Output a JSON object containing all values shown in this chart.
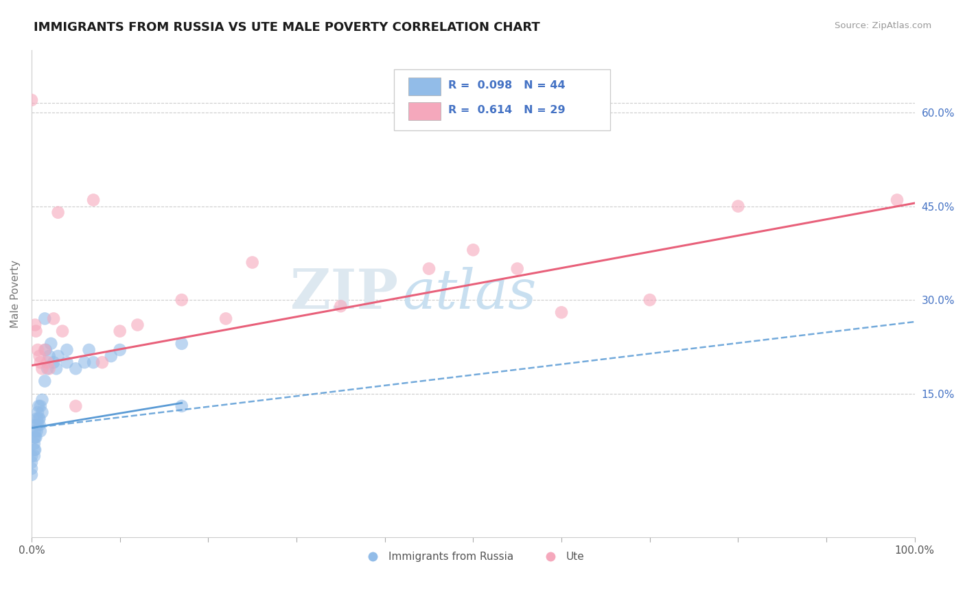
{
  "title": "IMMIGRANTS FROM RUSSIA VS UTE MALE POVERTY CORRELATION CHART",
  "source": "Source: ZipAtlas.com",
  "ylabel": "Male Poverty",
  "legend_label_blue": "Immigrants from Russia",
  "legend_label_pink": "Ute",
  "watermark_zip": "ZIP",
  "watermark_atlas": "atlas",
  "blue_color": "#92bce8",
  "pink_color": "#f5a8bc",
  "blue_line_color": "#5b9bd5",
  "pink_line_color": "#e8607a",
  "legend_text_color": "#4472c4",
  "yticks_right": [
    "60.0%",
    "45.0%",
    "30.0%",
    "15.0%"
  ],
  "ytick_values": [
    0.6,
    0.45,
    0.3,
    0.15
  ],
  "xmin": 0.0,
  "xmax": 1.0,
  "ymin": -0.08,
  "ymax": 0.7,
  "blue_points_x": [
    0.0,
    0.0,
    0.0,
    0.0,
    0.003,
    0.003,
    0.003,
    0.003,
    0.004,
    0.004,
    0.004,
    0.005,
    0.005,
    0.006,
    0.006,
    0.007,
    0.007,
    0.008,
    0.008,
    0.009,
    0.009,
    0.01,
    0.01,
    0.012,
    0.012,
    0.015,
    0.015,
    0.016,
    0.018,
    0.02,
    0.022,
    0.025,
    0.028,
    0.03,
    0.04,
    0.04,
    0.05,
    0.06,
    0.065,
    0.07,
    0.09,
    0.1,
    0.17,
    0.17
  ],
  "blue_points_y": [
    0.05,
    0.04,
    0.03,
    0.02,
    0.08,
    0.07,
    0.06,
    0.05,
    0.09,
    0.08,
    0.06,
    0.1,
    0.08,
    0.11,
    0.09,
    0.12,
    0.1,
    0.13,
    0.11,
    0.11,
    0.1,
    0.13,
    0.09,
    0.14,
    0.12,
    0.27,
    0.17,
    0.22,
    0.19,
    0.21,
    0.23,
    0.2,
    0.19,
    0.21,
    0.2,
    0.22,
    0.19,
    0.2,
    0.22,
    0.2,
    0.21,
    0.22,
    0.23,
    0.13
  ],
  "pink_points_x": [
    0.0,
    0.004,
    0.005,
    0.007,
    0.009,
    0.01,
    0.012,
    0.015,
    0.018,
    0.02,
    0.025,
    0.03,
    0.035,
    0.05,
    0.07,
    0.08,
    0.1,
    0.12,
    0.17,
    0.22,
    0.25,
    0.35,
    0.45,
    0.5,
    0.55,
    0.6,
    0.7,
    0.8,
    0.98
  ],
  "pink_points_y": [
    0.62,
    0.26,
    0.25,
    0.22,
    0.21,
    0.2,
    0.19,
    0.22,
    0.2,
    0.19,
    0.27,
    0.44,
    0.25,
    0.13,
    0.46,
    0.2,
    0.25,
    0.26,
    0.3,
    0.27,
    0.36,
    0.29,
    0.35,
    0.38,
    0.35,
    0.28,
    0.3,
    0.45,
    0.46
  ],
  "blue_solid_trend_x": [
    0.0,
    0.17
  ],
  "blue_solid_trend_y": [
    0.095,
    0.135
  ],
  "blue_dashed_trend_x": [
    0.0,
    1.0
  ],
  "blue_dashed_trend_y": [
    0.095,
    0.265
  ],
  "pink_trend_x": [
    0.0,
    1.0
  ],
  "pink_trend_y": [
    0.195,
    0.455
  ]
}
